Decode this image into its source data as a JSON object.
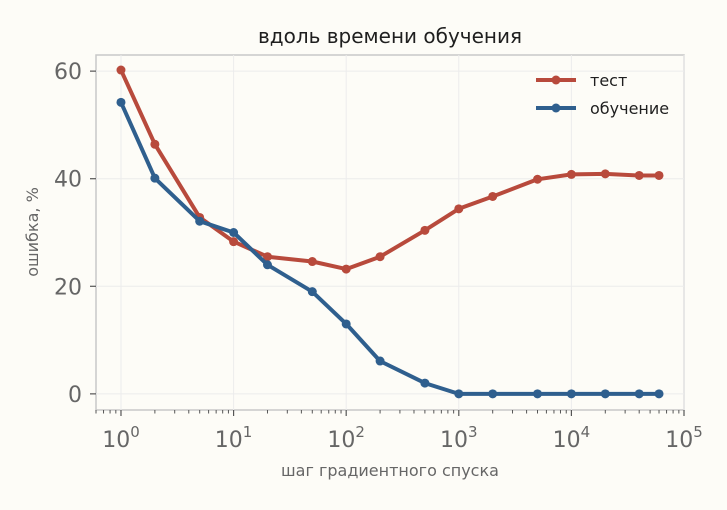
{
  "chart_data": {
    "type": "line",
    "title": "вдоль времени обучения",
    "xlabel": "шаг градиентного спуска",
    "ylabel": "ошибка, %",
    "xscale": "log",
    "xlim": [
      0.6,
      100000
    ],
    "ylim": [
      -3,
      63
    ],
    "x_ticks": [
      {
        "value": 1,
        "base": "10",
        "exp": "0"
      },
      {
        "value": 10,
        "base": "10",
        "exp": "1"
      },
      {
        "value": 100,
        "base": "10",
        "exp": "2"
      },
      {
        "value": 1000,
        "base": "10",
        "exp": "3"
      },
      {
        "value": 10000,
        "base": "10",
        "exp": "4"
      },
      {
        "value": 100000,
        "base": "10",
        "exp": "5"
      }
    ],
    "y_ticks": [
      0,
      20,
      40,
      60
    ],
    "grid": true,
    "legend_position": "top-right",
    "series": [
      {
        "name": "тест",
        "color": "#b84a3c",
        "x": [
          1,
          2,
          5,
          10,
          20,
          50,
          100,
          200,
          500,
          1000,
          2000,
          5000,
          10000,
          20000,
          40000,
          60000
        ],
        "y": [
          60.2,
          46.4,
          32.8,
          28.3,
          25.5,
          24.6,
          23.2,
          25.5,
          30.4,
          34.4,
          36.7,
          39.9,
          40.8,
          40.9,
          40.6,
          40.6
        ]
      },
      {
        "name": "обучение",
        "color": "#2f5f8e",
        "x": [
          1,
          2,
          5,
          10,
          20,
          50,
          100,
          200,
          500,
          1000,
          2000,
          5000,
          10000,
          20000,
          40000,
          60000
        ],
        "y": [
          54.2,
          40.1,
          32.1,
          30.0,
          24.0,
          19.0,
          13.0,
          6.1,
          2.0,
          0.0,
          0.0,
          0.0,
          0.0,
          0.0,
          0.0,
          0.0
        ]
      }
    ]
  }
}
